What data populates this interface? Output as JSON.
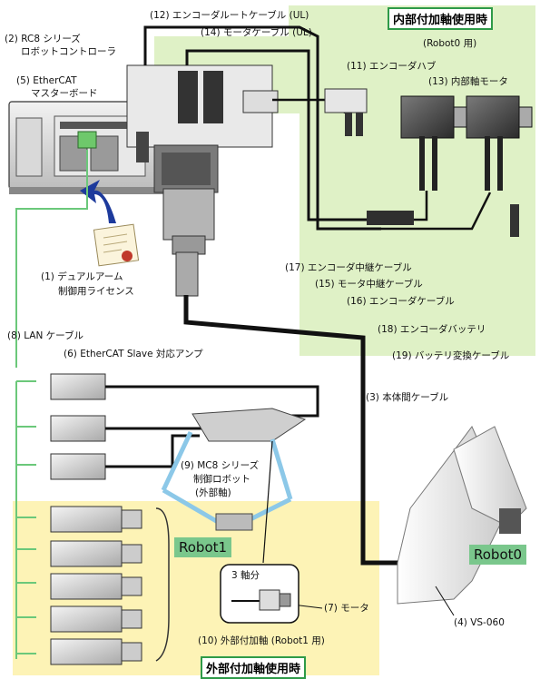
{
  "labels": {
    "internal_axis_title": "内部付加軸使用時",
    "robot0_use": "(Robot0 用)",
    "external_axis_title": "外部付加軸使用時",
    "l2_line1": "(2) RC8 シリーズ",
    "l2_line2": "ロボットコントローラ",
    "l5_line1": "(5) EtherCAT",
    "l5_line2": "マスターボード",
    "l12": "(12) エンコーダルートケーブル (UL)",
    "l14": "(14) モータケーブル (UL)",
    "l11": "(11) エンコーダハブ",
    "l13": "(13) 内部軸モータ",
    "l1_line1": "(1) デュアルアーム",
    "l1_line2": "制御用ライセンス",
    "l17": "(17) エンコーダ中継ケーブル",
    "l15": "(15) モータ中継ケーブル",
    "l16": "(16) エンコーダケーブル",
    "l18": "(18) エンコーダバッテリ",
    "l19": "(19) バッテリ変換ケーブル",
    "l8": "(8) LAN ケーブル",
    "l6": "(6) EtherCAT Slave 対応アンプ",
    "l3": "(3) 本体間ケーブル",
    "l9_line1": "(9) MC8 シリーズ",
    "l9_line2": "制御ロボット",
    "l9_line3": "(外部軸)",
    "robot1": "Robot1",
    "robot0": "Robot0",
    "three_axis": "3 軸分",
    "l7": "(7) モータ",
    "l4": "(4) VS-060",
    "l10": "(10) 外部付加軸 (Robot1 用)"
  }
}
